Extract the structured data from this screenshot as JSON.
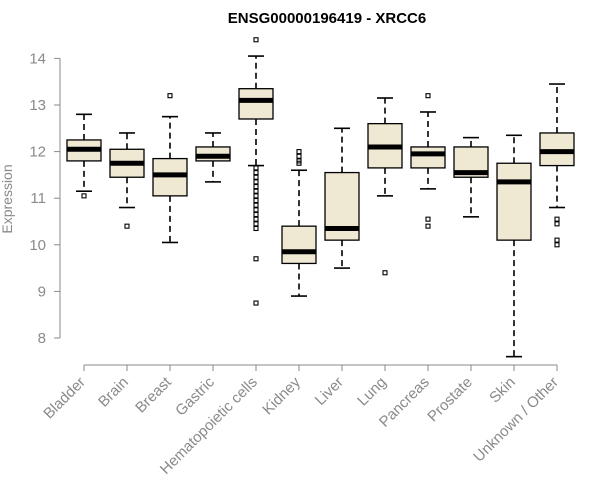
{
  "chart_data": {
    "type": "boxplot",
    "title": "ENSG00000196419 - XRCC6",
    "xlabel": "",
    "ylabel": "Expression",
    "ylim": [
      7.4,
      14.5
    ],
    "yticks": [
      8,
      9,
      10,
      11,
      12,
      13,
      14
    ],
    "grid": false,
    "box_color": "#efe8d2",
    "categories": [
      "Bladder",
      "Brain",
      "Breast",
      "Gastric",
      "Hematopoietic cells",
      "Kidney",
      "Liver",
      "Lung",
      "Pancreas",
      "Prostate",
      "Skin",
      "Unknown / Other"
    ],
    "boxes": [
      {
        "whisker_low": 11.15,
        "q1": 11.8,
        "median": 12.05,
        "q3": 12.25,
        "whisker_high": 12.8,
        "outliers": [
          11.05
        ]
      },
      {
        "whisker_low": 10.8,
        "q1": 11.45,
        "median": 11.75,
        "q3": 12.05,
        "whisker_high": 12.4,
        "outliers": [
          10.4
        ]
      },
      {
        "whisker_low": 10.05,
        "q1": 11.05,
        "median": 11.5,
        "q3": 11.85,
        "whisker_high": 12.75,
        "outliers": [
          13.2
        ]
      },
      {
        "whisker_low": 11.35,
        "q1": 11.8,
        "median": 11.9,
        "q3": 12.1,
        "whisker_high": 12.4,
        "outliers": []
      },
      {
        "whisker_low": 11.7,
        "q1": 12.7,
        "median": 13.1,
        "q3": 13.35,
        "whisker_high": 14.05,
        "outliers": [
          14.4,
          11.65,
          11.55,
          11.45,
          11.35,
          11.25,
          11.15,
          11.05,
          10.95,
          10.85,
          10.75,
          10.65,
          10.55,
          10.45,
          10.35,
          9.7,
          8.75
        ]
      },
      {
        "whisker_low": 8.9,
        "q1": 9.6,
        "median": 9.85,
        "q3": 10.4,
        "whisker_high": 11.6,
        "outliers": [
          12.0,
          11.9,
          11.8,
          11.75
        ]
      },
      {
        "whisker_low": 9.5,
        "q1": 10.1,
        "median": 10.35,
        "q3": 11.55,
        "whisker_high": 12.5,
        "outliers": []
      },
      {
        "whisker_low": 11.05,
        "q1": 11.65,
        "median": 12.1,
        "q3": 12.6,
        "whisker_high": 13.15,
        "outliers": [
          9.4
        ]
      },
      {
        "whisker_low": 11.2,
        "q1": 11.65,
        "median": 11.95,
        "q3": 12.1,
        "whisker_high": 12.85,
        "outliers": [
          13.2,
          10.55,
          10.4
        ]
      },
      {
        "whisker_low": 10.6,
        "q1": 11.45,
        "median": 11.55,
        "q3": 12.1,
        "whisker_high": 12.3,
        "outliers": []
      },
      {
        "whisker_low": 7.6,
        "q1": 10.1,
        "median": 11.35,
        "q3": 11.75,
        "whisker_high": 12.35,
        "outliers": []
      },
      {
        "whisker_low": 10.8,
        "q1": 11.7,
        "median": 12.0,
        "q3": 12.4,
        "whisker_high": 13.45,
        "outliers": [
          10.55,
          10.45,
          10.1,
          10.0
        ]
      }
    ]
  }
}
